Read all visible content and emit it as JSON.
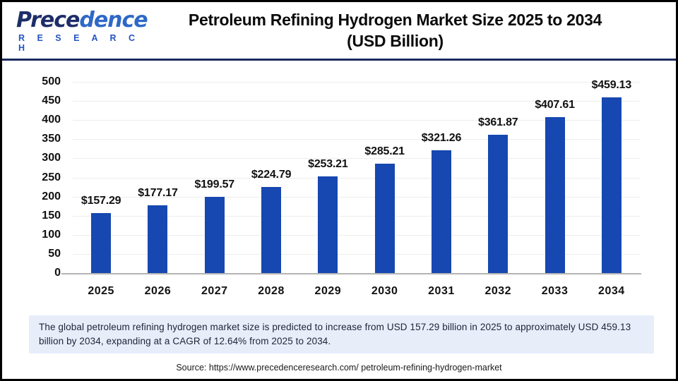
{
  "header": {
    "logo_brand_part1": "Prece",
    "logo_brand_part2": "dence",
    "logo_sub": "R E S E A R C H",
    "title_line1": "Petroleum Refining Hydrogen Market Size 2025 to 2034",
    "title_line2": "(USD Billion)"
  },
  "chart_data": {
    "type": "bar",
    "title": "Petroleum Refining Hydrogen Market Size 2025 to 2034 (USD Billion)",
    "categories": [
      "2025",
      "2026",
      "2027",
      "2028",
      "2029",
      "2030",
      "2031",
      "2032",
      "2033",
      "2034"
    ],
    "values": [
      157.29,
      177.17,
      199.57,
      224.79,
      253.21,
      285.21,
      321.26,
      361.87,
      407.61,
      459.13
    ],
    "value_labels": [
      "$157.29",
      "$177.17",
      "$199.57",
      "$224.79",
      "$253.21",
      "$285.21",
      "$321.26",
      "$361.87",
      "$407.61",
      "$459.13"
    ],
    "xlabel": "",
    "ylabel": "",
    "ylim": [
      0,
      500
    ],
    "ytick_step": 50,
    "yticks": [
      0,
      50,
      100,
      150,
      200,
      250,
      300,
      350,
      400,
      450,
      500
    ],
    "grid": true,
    "legend": false,
    "bar_color": "#1747b0"
  },
  "footer": {
    "description": "The global petroleum refining hydrogen market size is predicted to increase from USD 157.29 billion in 2025 to approximately USD 459.13 billion by 2034, expanding at a CAGR of 12.64% from 2025 to 2034.",
    "source": "Source: https://www.precedenceresearch.com/ petroleum-refining-hydrogen-market"
  },
  "colors": {
    "bar": "#1747b0",
    "divider_navy": "#1b2a5e",
    "description_bg": "#e7eefa",
    "gridline": "#ededed",
    "axis_baseline": "#b3b3b3",
    "logo_navy": "#1d2d69",
    "logo_blue": "#2e68c8",
    "frame_border": "#000000"
  }
}
